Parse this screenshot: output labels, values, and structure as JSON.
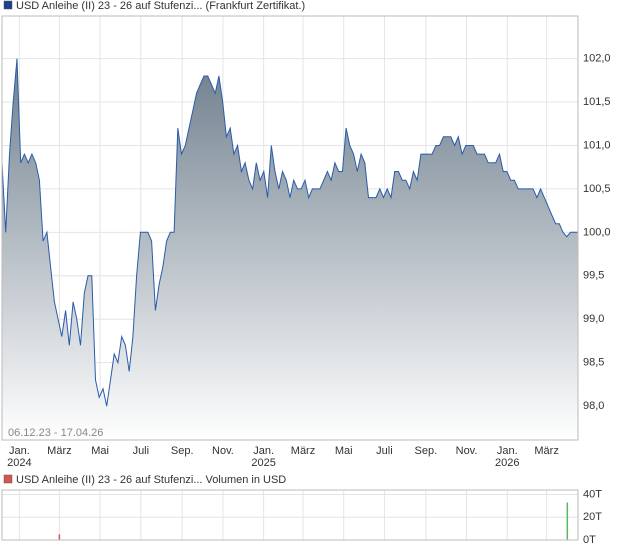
{
  "chart_data": [
    {
      "type": "area",
      "title": "USD Anleihe (II) 23 - 26 auf Stufenzi... (Frankfurt Zertifikat.)",
      "range_label": "06.12.23 - 17.04.26",
      "xlim": [
        "2023-12-06",
        "2026-04-17"
      ],
      "xticks": [
        {
          "value": "2024-01",
          "label": "Jan. 2024"
        },
        {
          "value": "2024-03",
          "label": "März"
        },
        {
          "value": "2024-05",
          "label": "Mai"
        },
        {
          "value": "2024-07",
          "label": "Juli"
        },
        {
          "value": "2024-09",
          "label": "Sep."
        },
        {
          "value": "2024-11",
          "label": "Nov."
        },
        {
          "value": "2025-01",
          "label": "Jan. 2025"
        },
        {
          "value": "2025-03",
          "label": "März"
        },
        {
          "value": "2025-05",
          "label": "Mai"
        },
        {
          "value": "2025-07",
          "label": "Juli"
        },
        {
          "value": "2025-09",
          "label": "Sep."
        },
        {
          "value": "2025-11",
          "label": "Nov."
        },
        {
          "value": "2026-01",
          "label": "Jan. 2026"
        },
        {
          "value": "2026-03",
          "label": "März"
        }
      ],
      "ylim": [
        97.61,
        102.49
      ],
      "yticks": [
        {
          "value": 98,
          "label": "98,0"
        },
        {
          "value": 98.5,
          "label": "98,5"
        },
        {
          "value": 99,
          "label": "99,0"
        },
        {
          "value": 99.5,
          "label": "99,5"
        },
        {
          "value": 100,
          "label": "100,0"
        },
        {
          "value": 100.5,
          "label": "100,5"
        },
        {
          "value": 101,
          "label": "101,0"
        },
        {
          "value": 101.5,
          "label": "101,5"
        },
        {
          "value": 102,
          "label": "102,0"
        }
      ],
      "grid": true,
      "series": [
        {
          "color": "#2a5caa",
          "values": [
            100.8,
            100.0,
            100.9,
            101.5,
            102.0,
            100.8,
            100.9,
            100.8,
            100.9,
            100.8,
            100.6,
            99.9,
            100.0,
            99.6,
            99.2,
            99.0,
            98.8,
            99.1,
            98.7,
            99.2,
            99.0,
            98.7,
            99.3,
            99.5,
            99.5,
            98.3,
            98.1,
            98.2,
            98.0,
            98.3,
            98.6,
            98.5,
            98.8,
            98.7,
            98.4,
            98.8,
            99.5,
            100.0,
            100.0,
            100.0,
            99.9,
            99.1,
            99.4,
            99.6,
            99.9,
            100.0,
            100.0,
            101.2,
            100.9,
            101.0,
            101.2,
            101.4,
            101.6,
            101.7,
            101.8,
            101.8,
            101.7,
            101.6,
            101.8,
            101.5,
            101.1,
            101.2,
            100.9,
            101.0,
            100.7,
            100.8,
            100.6,
            100.5,
            100.8,
            100.6,
            100.7,
            100.4,
            101.0,
            100.7,
            100.5,
            100.7,
            100.6,
            100.4,
            100.6,
            100.5,
            100.5,
            100.6,
            100.4,
            100.5,
            100.5,
            100.5,
            100.6,
            100.7,
            100.6,
            100.8,
            100.7,
            100.7,
            101.2,
            101.0,
            100.9,
            100.7,
            100.9,
            100.8,
            100.4,
            100.4,
            100.4,
            100.5,
            100.4,
            100.5,
            100.4,
            100.7,
            100.7,
            100.6,
            100.6,
            100.5,
            100.7,
            100.6,
            100.9,
            100.9,
            100.9,
            100.9,
            101.0,
            101.0,
            101.1,
            101.1,
            101.1,
            101.0,
            101.1,
            100.9,
            101.0,
            101.0,
            101.0,
            100.9,
            100.9,
            100.9,
            100.8,
            100.8,
            100.8,
            100.9,
            100.7,
            100.7,
            100.6,
            100.6,
            100.5,
            100.5,
            100.5,
            100.5,
            100.5,
            100.4,
            100.5,
            100.4,
            100.3,
            100.2,
            100.1,
            100.1,
            100.0,
            99.95,
            100.0,
            100.0,
            100.0
          ]
        }
      ]
    },
    {
      "type": "bar",
      "title": "USD Anleihe (II) 23 - 26 auf Stufenzi... Volumen in USD",
      "color": "#d9534f",
      "xlim": [
        "2023-12-06",
        "2026-04-17"
      ],
      "x": [
        "2024-03",
        "2026-04"
      ],
      "values": [
        5000,
        33000
      ],
      "colors": [
        "#d9534f",
        "#5cb85c"
      ],
      "ylim": [
        0,
        44000
      ],
      "yticks": [
        {
          "value": 0,
          "label": "0T"
        },
        {
          "value": 20000,
          "label": "20T"
        },
        {
          "value": 40000,
          "label": "40T"
        }
      ],
      "grid": true
    }
  ]
}
